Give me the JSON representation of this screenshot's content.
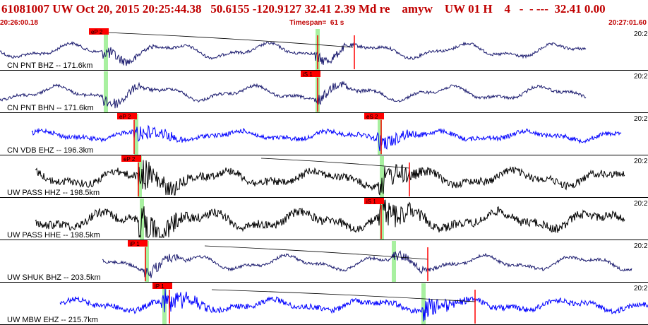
{
  "header": {
    "title": "61081007 UW Oct 20, 2015 20:25:44.38   50.6155 -120.9127 32.41 2.39 Md re    amyw    UW 01 H    4   -  - ---  32.41 0.00",
    "start_time": "20:26:00.18",
    "timespan": "Timespan=  61 s",
    "end_time": "20:27:01.60"
  },
  "colors": {
    "header_text": "#c00000",
    "pick_flag": "#ff0000",
    "pick_band": "#a8f0a0",
    "trace_navy": "#1a1a6e",
    "trace_blue": "#0000ff",
    "trace_black": "#000000"
  },
  "traces": [
    {
      "label": "CN PNT BHZ -- 171.6km",
      "corner": "20:2",
      "color": "navy",
      "start": 0,
      "end": 830,
      "amp": 14,
      "picks": [
        {
          "name": "eP 2",
          "x": 150
        }
      ],
      "bands": [
        150,
        450
      ],
      "red_marks": [
        450,
        502
      ],
      "arc": {
        "x1": 150,
        "y1": 6,
        "x2": 500,
        "y2": 27
      }
    },
    {
      "label": "CN PNT BHN -- 171.6km",
      "corner": "20:2",
      "color": "navy",
      "start": 0,
      "end": 830,
      "amp": 14,
      "picks": [
        {
          "name": "iS 1",
          "x": 450
        }
      ],
      "bands": [
        150,
        450
      ],
      "red_marks": [
        450
      ],
      "arc": null
    },
    {
      "label": "CN VDB EHZ -- 196.3km",
      "corner": "20:2",
      "color": "blue",
      "start": 45,
      "end": 880,
      "amp": 9,
      "picks": [
        {
          "name": "eP 2",
          "x": 190
        },
        {
          "name": "eS 2",
          "x": 540
        }
      ],
      "bands": [
        193,
        538
      ],
      "red_marks": [
        190,
        540
      ],
      "arc": null
    },
    {
      "label": "UW PASS HHZ -- 198.5km",
      "corner": "20:2",
      "color": "black",
      "start": 50,
      "end": 885,
      "amp": 15,
      "picks": [
        {
          "name": "eP 2",
          "x": 196
        }
      ],
      "bands": [
        198,
        541
      ],
      "red_marks": [
        196,
        580
      ],
      "arc": {
        "x1": 370,
        "y1": 4,
        "x2": 580,
        "y2": 18
      }
    },
    {
      "label": "UW PASS HHE -- 198.5km",
      "corner": "20:2",
      "color": "black",
      "start": 50,
      "end": 885,
      "amp": 17,
      "picks": [
        {
          "name": "iS 1",
          "x": 540
        }
      ],
      "bands": [
        201,
        541
      ],
      "red_marks": [
        540
      ],
      "arc": null
    },
    {
      "label": "UW SHUK BHZ -- 203.5km",
      "corner": "20:2",
      "color": "navy",
      "start": 145,
      "end": 895,
      "amp": 14,
      "picks": [
        {
          "name": "iP 1",
          "x": 205
        }
      ],
      "bands": [
        208,
        558
      ],
      "red_marks": [
        206,
        606
      ],
      "arc": {
        "x1": 290,
        "y1": 8,
        "x2": 606,
        "y2": 27
      }
    },
    {
      "label": "UW MBW EHZ -- 215.7km",
      "corner": "20:2",
      "color": "blue",
      "start": 85,
      "end": 918,
      "amp": 11,
      "picks": [
        {
          "name": "iP 1",
          "x": 240
        }
      ],
      "bands": [
        233,
        600
      ],
      "red_marks": [
        240,
        673
      ],
      "arc": {
        "x1": 300,
        "y1": 10,
        "x2": 673,
        "y2": 27
      }
    }
  ]
}
